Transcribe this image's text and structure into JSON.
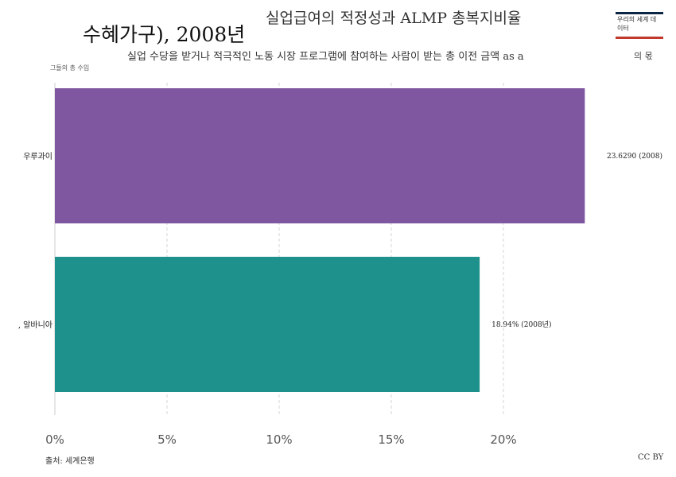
{
  "header": {
    "title": "실업급여의 적정성과 ALMP 총복지비율",
    "title_continued": "수혜가구), 2008년",
    "subtitle": "실업 수당을 받거나 적극적인 노동 시장 프로그램에 참여하는 사람이 받는 총 이전 금액 as a",
    "subtitle_tail": "의 몫",
    "subtitle_continued": "그들의 총 수입"
  },
  "logo": {
    "text": "우리의 세계 데이터"
  },
  "footer": {
    "source": "출처: 세계은행",
    "license": "CC BY"
  },
  "chart_data": {
    "type": "bar",
    "orientation": "horizontal",
    "categories": [
      "우루과이",
      ", 알바니아"
    ],
    "values": [
      23.629,
      18.94
    ],
    "value_labels": [
      "23.6290 (2008)",
      "18.94% (2008년)"
    ],
    "colors": [
      "#7f57a0",
      "#1f918c"
    ],
    "xlim": [
      0,
      24
    ],
    "x_ticks": [
      0,
      5,
      10,
      15,
      20
    ],
    "x_tick_labels": [
      "0%",
      "5%",
      "10%",
      "15%",
      "20%"
    ],
    "grid": true
  }
}
